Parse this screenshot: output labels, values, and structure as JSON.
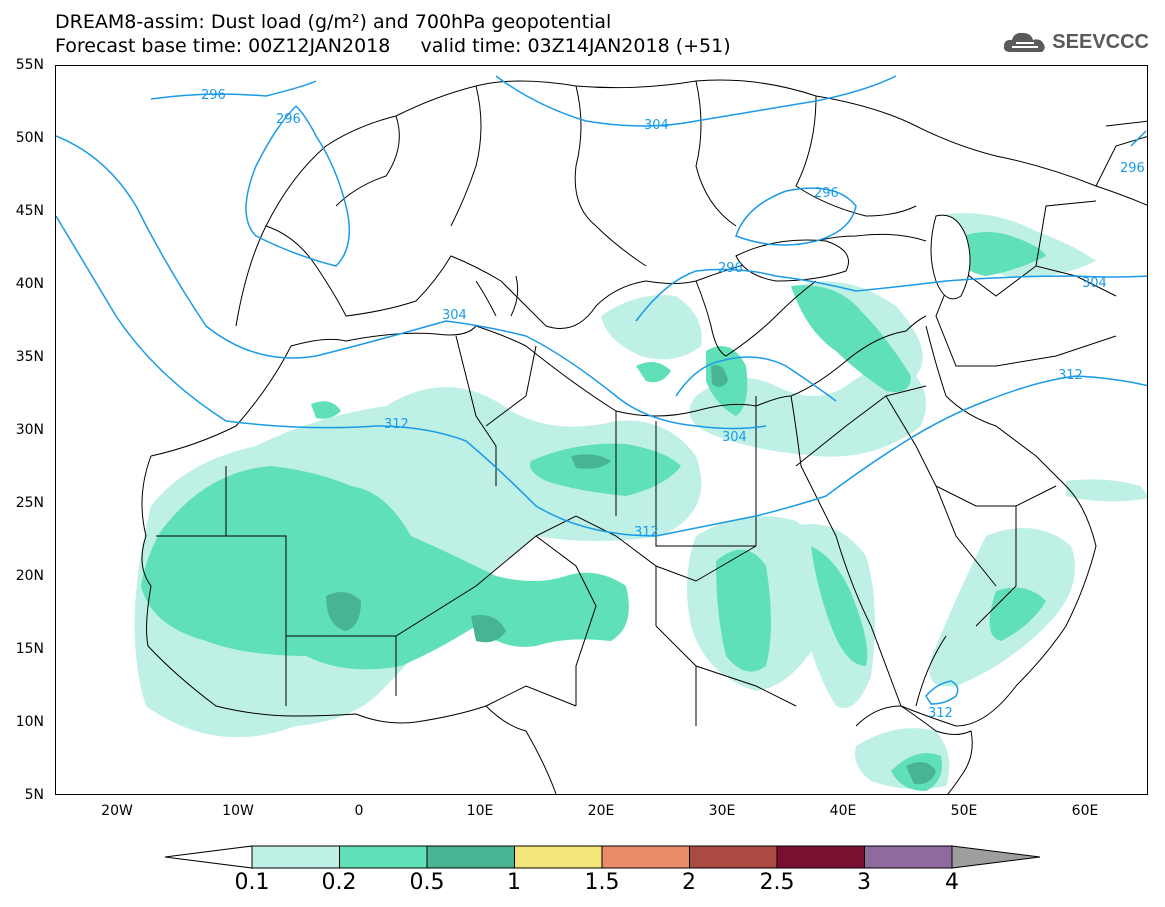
{
  "title": {
    "line1": "DREAM8-assim: Dust load (g/m²) and 700hPa geopotential",
    "line2": "Forecast base time: 00Z12JAN2018     valid time: 03Z14JAN2018 (+51)"
  },
  "logo": {
    "text": "SEEVCCC",
    "icon": "cloud-logo-icon"
  },
  "axes": {
    "lat_labels": [
      "55N",
      "50N",
      "45N",
      "40N",
      "35N",
      "30N",
      "25N",
      "20N",
      "15N",
      "10N",
      "5N"
    ],
    "lon_labels": [
      "20W",
      "10W",
      "0",
      "10E",
      "20E",
      "30E",
      "40E",
      "50E",
      "60E"
    ],
    "lat_range": [
      5,
      55
    ],
    "lon_range": [
      -25,
      65
    ]
  },
  "contours": {
    "color": "#1a9be8",
    "labels": [
      "296",
      "296",
      "304",
      "296",
      "296",
      "296",
      "304",
      "304",
      "312",
      "304",
      "312",
      "312",
      "312"
    ]
  },
  "dust_levels": {
    "colors": [
      "#bff0e6",
      "#5fe0b8",
      "#48b494",
      "#f2e67a",
      "#ea8c6a",
      "#aa4a40",
      "#7a1030",
      "#8e6a9e",
      "#9e9e9e"
    ],
    "thresholds": [
      "0.1",
      "0.2",
      "0.5",
      "1",
      "1.5",
      "2",
      "2.5",
      "3",
      "4"
    ]
  },
  "land_line_color": "#000000"
}
